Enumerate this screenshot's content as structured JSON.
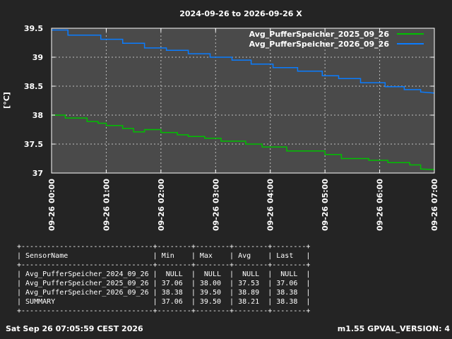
{
  "chart_data": {
    "type": "line",
    "title": "2024-09-26 to 2026-09-26 X",
    "ylabel": "[°C]",
    "xlim": [
      0,
      7
    ],
    "ylim": [
      37,
      39.5
    ],
    "yticks": [
      37,
      37.5,
      38,
      38.5,
      39,
      39.5
    ],
    "ytick_labels": [
      "37",
      "37.5",
      "38",
      "38.5",
      "39",
      "39.5"
    ],
    "xticks": [
      0,
      1,
      2,
      3,
      4,
      5,
      6,
      7
    ],
    "xtick_labels": [
      "09-26 00:00",
      "09-26 01:00",
      "09-26 02:00",
      "09-26 03:00",
      "09-26 04:00",
      "09-26 05:00",
      "09-26 06:00",
      "09-26 07:00"
    ],
    "grid": true,
    "legend_position": "top-right",
    "plot_background": "#4a4a4a",
    "series": [
      {
        "name": "Avg_PufferSpeicher_2025_09_26",
        "color": "#00c000",
        "x": [
          0,
          0.25,
          0.25,
          0.65,
          0.65,
          0.85,
          0.85,
          1.0,
          1.0,
          1.3,
          1.3,
          1.5,
          1.5,
          1.7,
          1.7,
          2.0,
          2.0,
          2.3,
          2.3,
          2.5,
          2.5,
          2.8,
          2.8,
          3.1,
          3.1,
          3.55,
          3.55,
          3.85,
          3.85,
          4.3,
          4.3,
          4.7,
          4.7,
          5.0,
          5.0,
          5.3,
          5.3,
          5.8,
          5.8,
          6.15,
          6.15,
          6.55,
          6.55,
          6.75,
          6.75,
          7.0
        ],
        "y": [
          38.0,
          38.0,
          37.95,
          37.95,
          37.89,
          37.89,
          37.86,
          37.86,
          37.82,
          37.82,
          37.77,
          37.77,
          37.71,
          37.71,
          37.75,
          37.75,
          37.7,
          37.7,
          37.66,
          37.66,
          37.63,
          37.63,
          37.6,
          37.6,
          37.55,
          37.55,
          37.5,
          37.5,
          37.45,
          37.45,
          37.38,
          37.38,
          37.38,
          37.38,
          37.32,
          37.32,
          37.25,
          37.25,
          37.22,
          37.22,
          37.18,
          37.18,
          37.14,
          37.14,
          37.07,
          37.06
        ]
      },
      {
        "name": "Avg_PufferSpeicher_2026_09_26",
        "color": "#0a7cff",
        "x": [
          0,
          0.3,
          0.3,
          0.9,
          0.9,
          1.3,
          1.3,
          1.7,
          1.7,
          2.1,
          2.1,
          2.5,
          2.5,
          2.9,
          2.9,
          3.3,
          3.3,
          3.65,
          3.65,
          4.05,
          4.05,
          4.5,
          4.5,
          4.95,
          4.95,
          5.25,
          5.25,
          5.65,
          5.65,
          6.1,
          6.1,
          6.45,
          6.45,
          6.75,
          6.75,
          7.0
        ],
        "y": [
          39.47,
          39.47,
          39.38,
          39.38,
          39.31,
          39.31,
          39.24,
          39.24,
          39.16,
          39.16,
          39.12,
          39.12,
          39.06,
          39.06,
          39.0,
          39.0,
          38.95,
          38.95,
          38.88,
          38.88,
          38.82,
          38.82,
          38.76,
          38.76,
          38.68,
          38.68,
          38.63,
          38.63,
          38.56,
          38.56,
          38.49,
          38.49,
          38.44,
          38.44,
          38.4,
          38.38
        ]
      }
    ]
  },
  "stats_table": [
    "+-------------------------------+--------+--------+--------+--------+",
    "| SensorName                    | Min    | Max    | Avg    | Last   |",
    "+-------------------------------+--------+--------+--------+--------+",
    "| Avg_PufferSpeicher_2024_09_26 |  NULL  |  NULL  |  NULL  |  NULL  |",
    "| Avg_PufferSpeicher_2025_09_26 | 37.06  | 38.00  | 37.53  | 37.06  |",
    "| Avg_PufferSpeicher_2026_09_26 | 38.38  | 39.50  | 38.89  | 38.38  |",
    "| SUMMARY                       | 37.06  | 39.50  | 38.21  | 38.38  |",
    "+-------------------------------+--------+--------+--------+--------+"
  ],
  "footer": {
    "timestamp": "Sat Sep 26 07:05:59 CEST 2026",
    "version": "m1.55 GPVAL_VERSION: 4"
  }
}
